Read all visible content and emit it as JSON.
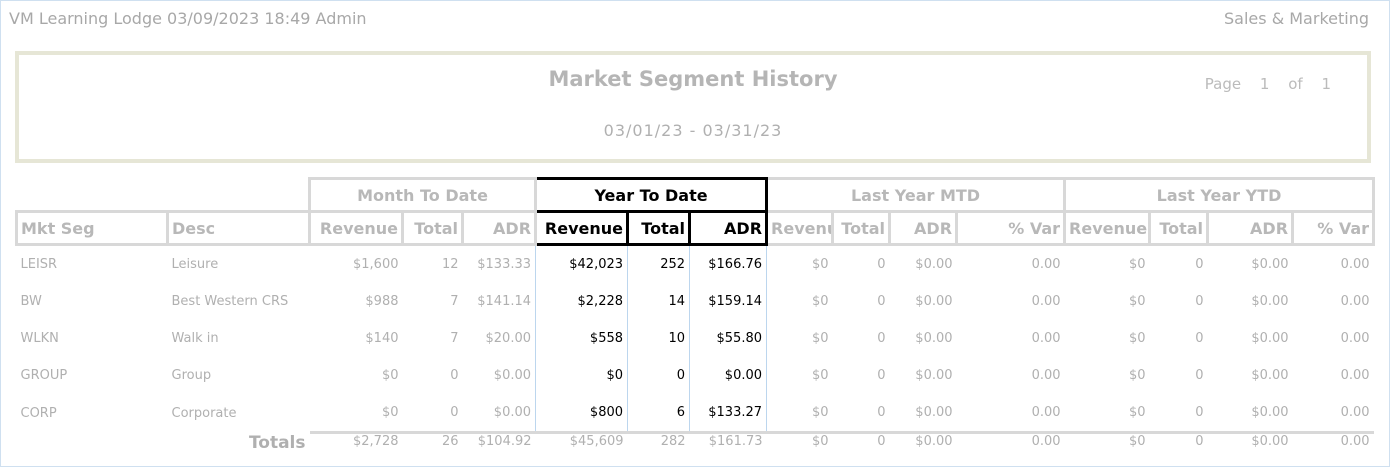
{
  "header": {
    "left": "VM Learning Lodge 03/09/2023 18:49  Admin",
    "right": "Sales & Marketing"
  },
  "report": {
    "title": "Market Segment History",
    "date_range": "03/01/23 - 03/31/23",
    "page_label": "Page",
    "page": "1",
    "of_label": "of",
    "pages": "1"
  },
  "groups": [
    "Month To Date",
    "Year To Date",
    "Last Year MTD",
    "Last Year YTD"
  ],
  "columns": [
    "Mkt Seg",
    "Desc",
    "Revenue",
    "Total",
    "ADR",
    "Revenue",
    "Total",
    "ADR",
    "Revenue",
    "Total",
    "ADR",
    "% Var",
    "Revenue",
    "Total",
    "ADR",
    "% Var"
  ],
  "rows": [
    [
      "LEISR",
      "Leisure",
      "$1,600",
      "12",
      "$133.33",
      "$42,023",
      "252",
      "$166.76",
      "$0",
      "0",
      "$0.00",
      "0.00",
      "$0",
      "0",
      "$0.00",
      "0.00"
    ],
    [
      "BW",
      "Best Western CRS",
      "$988",
      "7",
      "$141.14",
      "$2,228",
      "14",
      "$159.14",
      "$0",
      "0",
      "$0.00",
      "0.00",
      "$0",
      "0",
      "$0.00",
      "0.00"
    ],
    [
      "WLKN",
      "Walk in",
      "$140",
      "7",
      "$20.00",
      "$558",
      "10",
      "$55.80",
      "$0",
      "0",
      "$0.00",
      "0.00",
      "$0",
      "0",
      "$0.00",
      "0.00"
    ],
    [
      "GROUP",
      "Group",
      "$0",
      "0",
      "$0.00",
      "$0",
      "0",
      "$0.00",
      "$0",
      "0",
      "$0.00",
      "0.00",
      "$0",
      "0",
      "$0.00",
      "0.00"
    ],
    [
      "CORP",
      "Corporate",
      "$0",
      "0",
      "$0.00",
      "$800",
      "6",
      "$133.27",
      "$0",
      "0",
      "$0.00",
      "0.00",
      "$0",
      "0",
      "$0.00",
      "0.00"
    ]
  ],
  "totals": {
    "label": "Totals",
    "values": [
      "$2,728",
      "26",
      "$104.92",
      "$45,609",
      "282",
      "$161.73",
      "$0",
      "0",
      "$0.00",
      "0.00",
      "$0",
      "0",
      "$0.00",
      "0.00"
    ]
  }
}
